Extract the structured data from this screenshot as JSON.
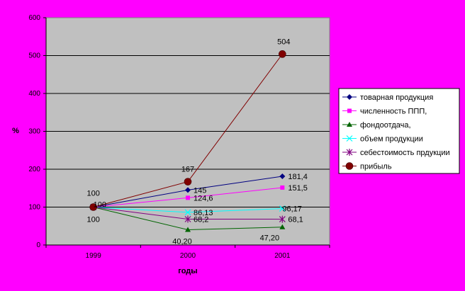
{
  "chart_data": {
    "type": "line",
    "categories": [
      "1999",
      "2000",
      "2001"
    ],
    "ylabel": "%",
    "xlabel": "годы",
    "ylim": [
      0,
      600
    ],
    "yticks": [
      "0",
      "100",
      "200",
      "300",
      "400",
      "500",
      "600"
    ],
    "grid": true,
    "legend_position": "right",
    "series": [
      {
        "name": "товарная продукция",
        "values": [
          100,
          145,
          181.4
        ],
        "color": "#000080",
        "marker": "diamond",
        "labels": [
          "",
          "145",
          "181,4"
        ]
      },
      {
        "name": "численность ППП,",
        "values": [
          100,
          124.6,
          151.5
        ],
        "color": "#ff00ff",
        "marker": "square",
        "labels": [
          "",
          "124,6",
          "151,5"
        ]
      },
      {
        "name": "фондоотдача,",
        "values": [
          100,
          40.2,
          47.2
        ],
        "color": "#006400",
        "marker": "triangle",
        "labels": [
          "100",
          "40,20",
          "47,20"
        ]
      },
      {
        "name": "объем продукции",
        "values": [
          100,
          86.13,
          96.17
        ],
        "color": "#00ffff",
        "marker": "x",
        "labels": [
          "",
          "86,13",
          "96,17"
        ]
      },
      {
        "name": "себестоимость прдукции",
        "values": [
          100,
          68.2,
          68.1
        ],
        "color": "#800080",
        "marker": "star",
        "labels": [
          "100",
          "68,2",
          "68,1"
        ]
      },
      {
        "name": "прибыль",
        "values": [
          100,
          167,
          504
        ],
        "color": "#800000",
        "marker": "circle",
        "labels": [
          "100",
          "167",
          "504"
        ]
      }
    ]
  }
}
